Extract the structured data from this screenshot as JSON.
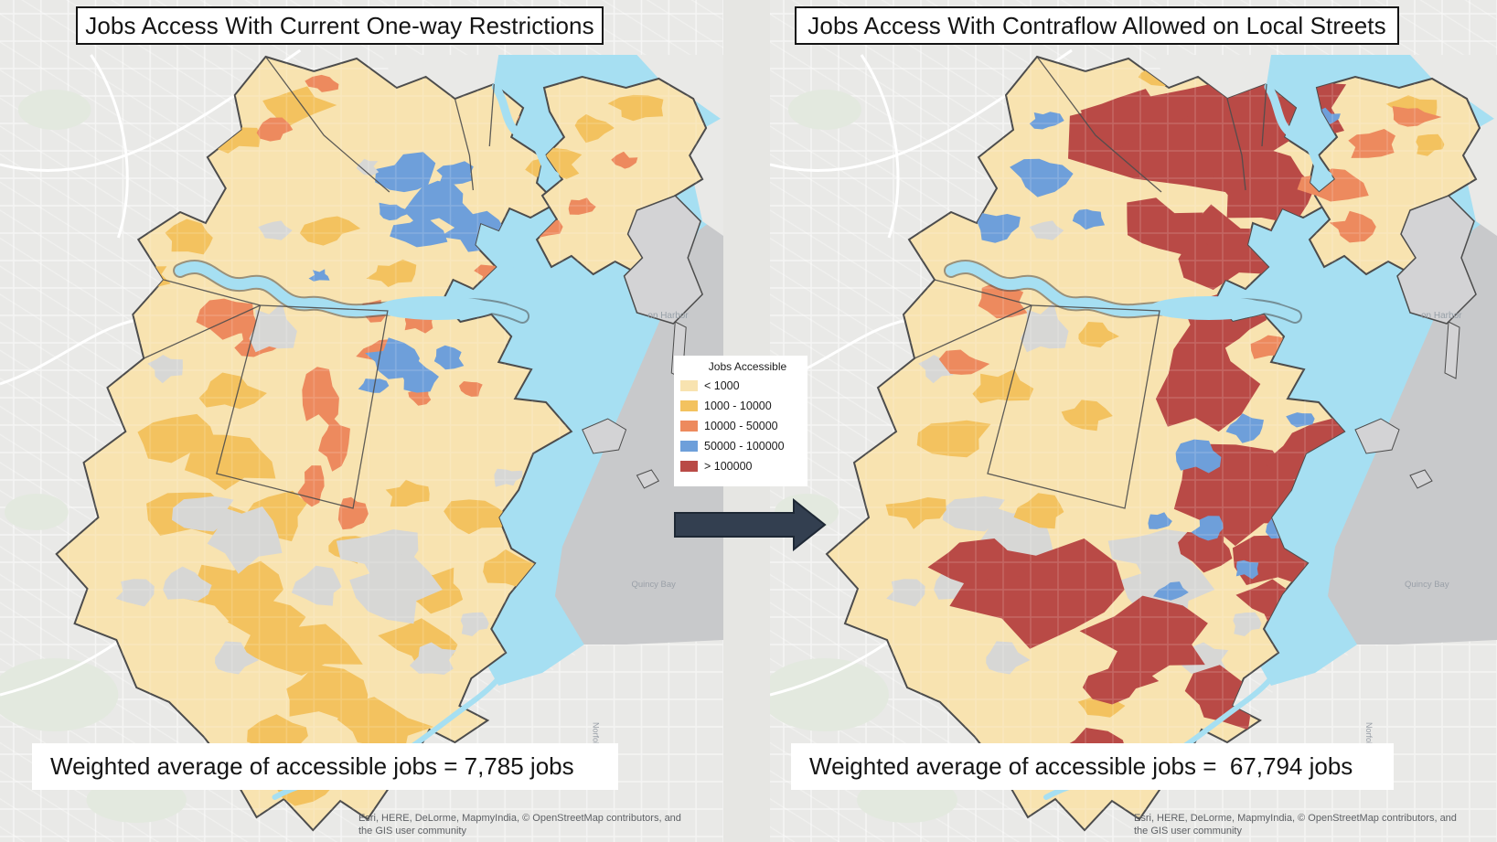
{
  "panels": {
    "left": {
      "title": "Jobs Access With Current One-way Restrictions",
      "caption": "Weighted average of accessible jobs = 7,785 jobs",
      "attribution_line1": "Esri, HERE, DeLorme, MapmyIndia, © OpenStreetMap contributors, and",
      "attribution_line2": "the GIS user community"
    },
    "right": {
      "title": "Jobs Access With Contraflow Allowed on Local Streets",
      "caption": "Weighted average of accessible jobs =  67,794 jobs",
      "attribution_line1": "Esri, HERE, DeLorme, MapmyIndia, © OpenStreetMap contributors, and",
      "attribution_line2": "the GIS user community"
    }
  },
  "legend": {
    "title": "Jobs Accessible",
    "items": [
      {
        "label": "< 1000",
        "color": "#F8E3B0"
      },
      {
        "label": "1000 - 10000",
        "color": "#F3C25F"
      },
      {
        "label": "10000 - 50000",
        "color": "#ED8A5E"
      },
      {
        "label": "50000 - 100000",
        "color": "#6E9FDA"
      },
      {
        "label": "> 100000",
        "color": "#B94A46"
      }
    ]
  },
  "map_text_labels": {
    "harbor": "on Harbor",
    "bay": "Quincy Bay",
    "county": "Norfolk"
  },
  "colors": {
    "basemap": "#E9E9E7",
    "park": "#E3E9DF",
    "water": "#A6DFF2",
    "out_gray": "#C8C9CB",
    "land_gray": "#D3D3D5",
    "nodata_gray": "#D7D7D5",
    "cream_base": "#FAE6B8",
    "boundary": "#4C4C4C",
    "arrow_fill": "#333F50",
    "arrow_edge": "#1E2835",
    "label_gray": "#97A0A8"
  }
}
